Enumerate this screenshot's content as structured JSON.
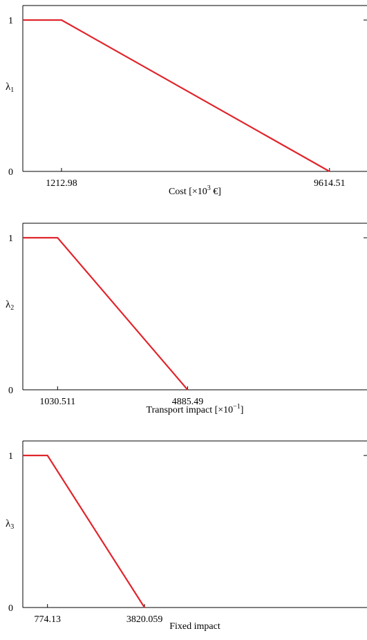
{
  "chart_data": [
    {
      "type": "line",
      "ylabel": "λ",
      "ylabel_sub": "1",
      "xlabel": "Cost [×10",
      "xlabel_sup": "3",
      "xlabel_tail": " €]",
      "y_ticks": [
        "0",
        "1"
      ],
      "x_ticks": [
        "1212.98",
        "9614.51"
      ],
      "xlim": [
        0,
        10790
      ],
      "ylim": [
        0,
        1
      ],
      "series": [
        {
          "x": [
            0,
            1212.98,
            9614.51
          ],
          "y": [
            1,
            1,
            0
          ],
          "color": "#e0252b"
        }
      ]
    },
    {
      "type": "line",
      "ylabel": "λ",
      "ylabel_sub": "2",
      "xlabel": "Transport impact [×10",
      "xlabel_sup": "−1",
      "xlabel_tail": "]",
      "y_ticks": [
        "0",
        "1"
      ],
      "x_ticks": [
        "1030.511",
        "4885.49"
      ],
      "xlim": [
        0,
        10200
      ],
      "ylim": [
        0,
        1
      ],
      "series": [
        {
          "x": [
            0,
            1030.511,
            4885.49
          ],
          "y": [
            1,
            1,
            0
          ],
          "color": "#e0252b"
        }
      ]
    },
    {
      "type": "line",
      "ylabel": "λ",
      "ylabel_sub": "3",
      "xlabel": "Fixed impact",
      "xlabel_sup": "",
      "xlabel_tail": "",
      "y_ticks": [
        "0",
        "1"
      ],
      "x_ticks": [
        "774.13",
        "3820.059"
      ],
      "xlim": [
        0,
        10800
      ],
      "ylim": [
        0,
        1
      ],
      "series": [
        {
          "x": [
            0,
            774.13,
            3820.059
          ],
          "y": [
            1,
            1,
            0
          ],
          "color": "#e0252b"
        }
      ]
    }
  ]
}
